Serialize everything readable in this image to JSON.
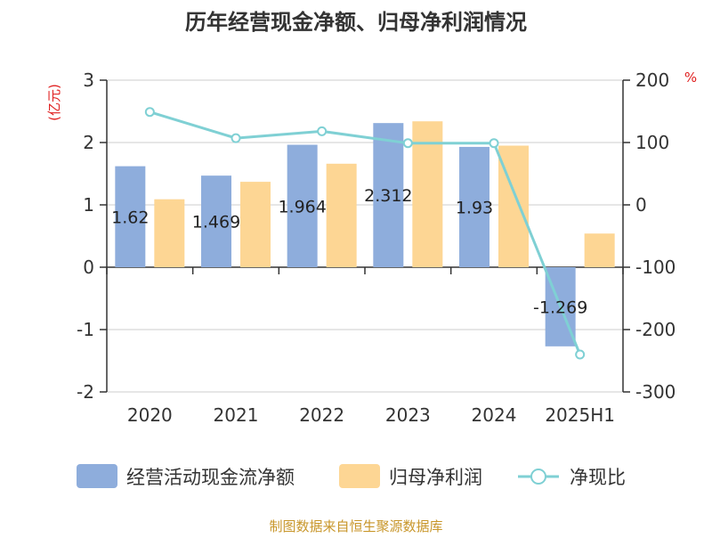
{
  "title": "历年经营现金净额、归母净利润情况",
  "source": "制图数据来自恒生聚源数据库",
  "colors": {
    "cash": "#8eaddc",
    "profit": "#fdd694",
    "ratio": "#7fd0d4",
    "unit": "#e02020",
    "source": "#c8962a"
  },
  "chart_data": {
    "type": "bar",
    "title": "历年经营现金净额、归母净利润情况",
    "categories": [
      "2020",
      "2021",
      "2022",
      "2023",
      "2024",
      "2025H1"
    ],
    "y_left": {
      "unit": "(亿元)",
      "range": [
        -2,
        3
      ],
      "ticks": [
        3,
        2,
        1,
        0,
        -1,
        -2
      ],
      "tick_labels": [
        "3",
        "2",
        "1",
        "0",
        "-1",
        "-2"
      ]
    },
    "y_right": {
      "unit": "%",
      "range": [
        -300,
        200
      ],
      "ticks": [
        200,
        100,
        0,
        -100,
        -200,
        -300
      ],
      "tick_labels": [
        "200",
        "100",
        "0",
        "-100",
        "-200",
        "-300"
      ]
    },
    "grid": true,
    "legend_position": "bottom",
    "series": [
      {
        "name": "经营活动现金流净额",
        "type": "bar",
        "axis": "left",
        "values": [
          1.62,
          1.469,
          1.964,
          2.312,
          1.93,
          -1.269
        ],
        "labels": [
          "1.62",
          "1.469",
          "1.964",
          "2.312",
          "1.93",
          "-1.269"
        ]
      },
      {
        "name": "归母净利润",
        "type": "bar",
        "axis": "left",
        "values": [
          1.09,
          1.37,
          1.66,
          2.34,
          1.95,
          0.54
        ]
      },
      {
        "name": "净现比",
        "type": "line",
        "axis": "right",
        "values": [
          149,
          107,
          118,
          99,
          99,
          -240
        ]
      }
    ]
  }
}
